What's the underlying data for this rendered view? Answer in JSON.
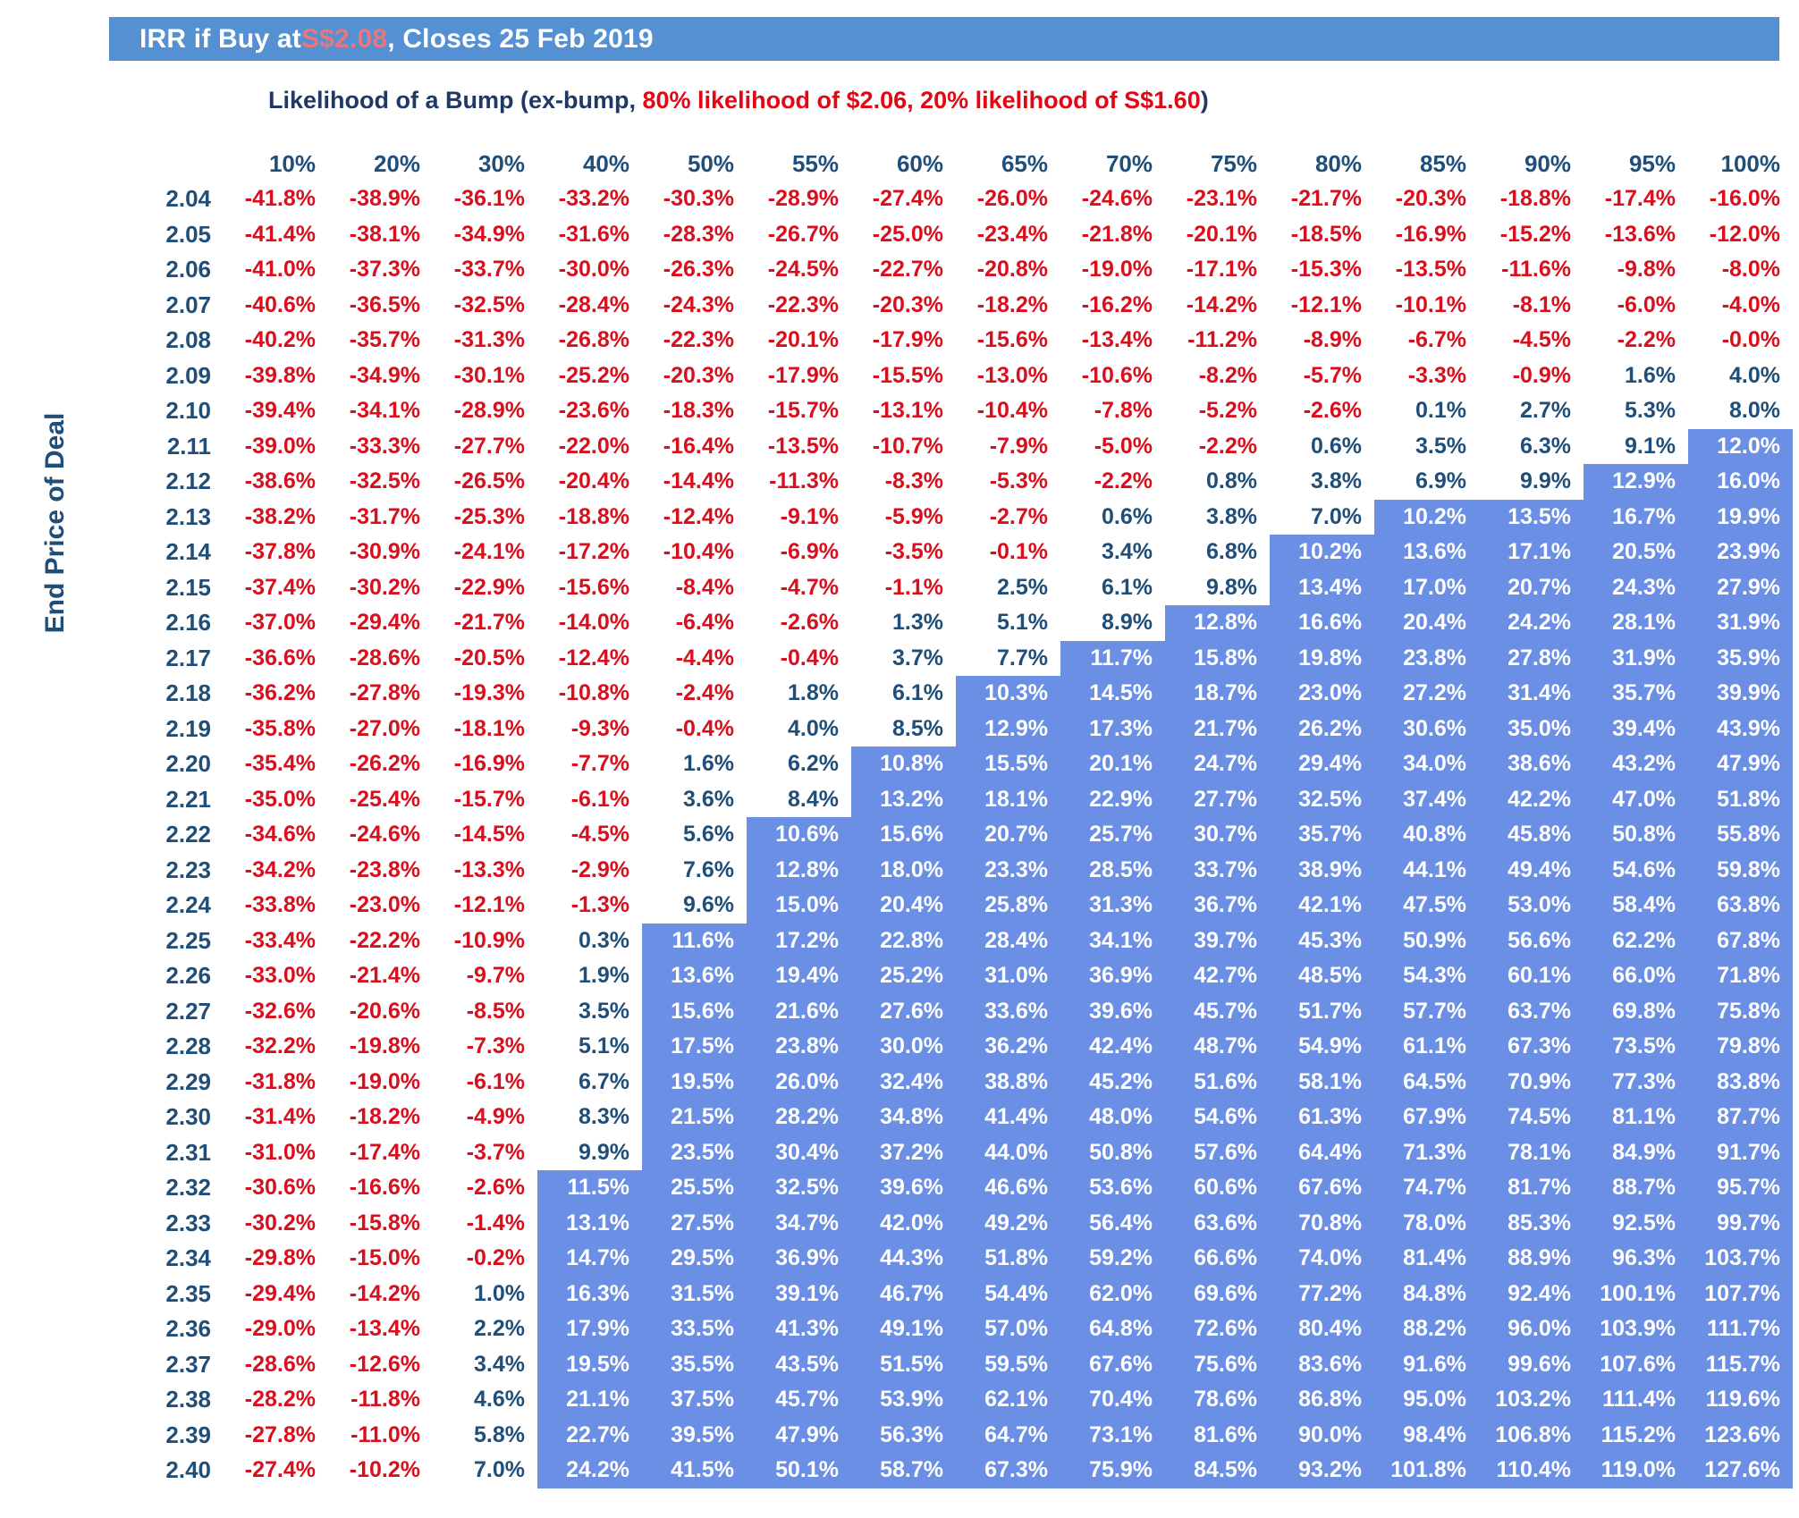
{
  "title": {
    "prefix": "IRR if Buy at ",
    "accent": "S$2.08",
    "suffix": ", Closes 25 Feb 2019"
  },
  "subtitle": {
    "prefix": "Likelihood of a Bump (ex-bump, ",
    "red": "80% likelihood of $2.06, 20% likelihood of S$1.60",
    "suffix": ")"
  },
  "colors": {
    "title_bar_bg": "#5590D2",
    "title_accent_red": "#E8767D",
    "navy_text": "#1F4E79",
    "negative_red": "#D90F1D",
    "subtitle_red": "#E30613",
    "highlight_bg": "#6A8FE5",
    "highlight_text": "#FFFFFF"
  },
  "chart_data": {
    "type": "table",
    "title": "IRR if Buy at S$2.08, Closes 25 Feb 2019",
    "subtitle": "Likelihood of a Bump (ex-bump, 80% likelihood of $2.06, 20% likelihood of S$1.60)",
    "xlabel": "Likelihood of a Bump",
    "ylabel": "End Price of Deal",
    "highlight_threshold_pct": 10,
    "highlight_note": "cells with IRR >= 10% shown white on blue",
    "columns": [
      "10%",
      "20%",
      "30%",
      "40%",
      "50%",
      "55%",
      "60%",
      "65%",
      "70%",
      "75%",
      "80%",
      "85%",
      "90%",
      "95%",
      "100%"
    ],
    "rows": [
      "2.04",
      "2.05",
      "2.06",
      "2.07",
      "2.08",
      "2.09",
      "2.10",
      "2.11",
      "2.12",
      "2.13",
      "2.14",
      "2.15",
      "2.16",
      "2.17",
      "2.18",
      "2.19",
      "2.20",
      "2.21",
      "2.22",
      "2.23",
      "2.24",
      "2.25",
      "2.26",
      "2.27",
      "2.28",
      "2.29",
      "2.30",
      "2.31",
      "2.32",
      "2.33",
      "2.34",
      "2.35",
      "2.36",
      "2.37",
      "2.38",
      "2.39",
      "2.40"
    ],
    "values": [
      [
        "-41.8%",
        "-38.9%",
        "-36.1%",
        "-33.2%",
        "-30.3%",
        "-28.9%",
        "-27.4%",
        "-26.0%",
        "-24.6%",
        "-23.1%",
        "-21.7%",
        "-20.3%",
        "-18.8%",
        "-17.4%",
        "-16.0%"
      ],
      [
        "-41.4%",
        "-38.1%",
        "-34.9%",
        "-31.6%",
        "-28.3%",
        "-26.7%",
        "-25.0%",
        "-23.4%",
        "-21.8%",
        "-20.1%",
        "-18.5%",
        "-16.9%",
        "-15.2%",
        "-13.6%",
        "-12.0%"
      ],
      [
        "-41.0%",
        "-37.3%",
        "-33.7%",
        "-30.0%",
        "-26.3%",
        "-24.5%",
        "-22.7%",
        "-20.8%",
        "-19.0%",
        "-17.1%",
        "-15.3%",
        "-13.5%",
        "-11.6%",
        "-9.8%",
        "-8.0%"
      ],
      [
        "-40.6%",
        "-36.5%",
        "-32.5%",
        "-28.4%",
        "-24.3%",
        "-22.3%",
        "-20.3%",
        "-18.2%",
        "-16.2%",
        "-14.2%",
        "-12.1%",
        "-10.1%",
        "-8.1%",
        "-6.0%",
        "-4.0%"
      ],
      [
        "-40.2%",
        "-35.7%",
        "-31.3%",
        "-26.8%",
        "-22.3%",
        "-20.1%",
        "-17.9%",
        "-15.6%",
        "-13.4%",
        "-11.2%",
        "-8.9%",
        "-6.7%",
        "-4.5%",
        "-2.2%",
        "-0.0%"
      ],
      [
        "-39.8%",
        "-34.9%",
        "-30.1%",
        "-25.2%",
        "-20.3%",
        "-17.9%",
        "-15.5%",
        "-13.0%",
        "-10.6%",
        "-8.2%",
        "-5.7%",
        "-3.3%",
        "-0.9%",
        "1.6%",
        "4.0%"
      ],
      [
        "-39.4%",
        "-34.1%",
        "-28.9%",
        "-23.6%",
        "-18.3%",
        "-15.7%",
        "-13.1%",
        "-10.4%",
        "-7.8%",
        "-5.2%",
        "-2.6%",
        "0.1%",
        "2.7%",
        "5.3%",
        "8.0%"
      ],
      [
        "-39.0%",
        "-33.3%",
        "-27.7%",
        "-22.0%",
        "-16.4%",
        "-13.5%",
        "-10.7%",
        "-7.9%",
        "-5.0%",
        "-2.2%",
        "0.6%",
        "3.5%",
        "6.3%",
        "9.1%",
        "12.0%"
      ],
      [
        "-38.6%",
        "-32.5%",
        "-26.5%",
        "-20.4%",
        "-14.4%",
        "-11.3%",
        "-8.3%",
        "-5.3%",
        "-2.2%",
        "0.8%",
        "3.8%",
        "6.9%",
        "9.9%",
        "12.9%",
        "16.0%"
      ],
      [
        "-38.2%",
        "-31.7%",
        "-25.3%",
        "-18.8%",
        "-12.4%",
        "-9.1%",
        "-5.9%",
        "-2.7%",
        "0.6%",
        "3.8%",
        "7.0%",
        "10.2%",
        "13.5%",
        "16.7%",
        "19.9%"
      ],
      [
        "-37.8%",
        "-30.9%",
        "-24.1%",
        "-17.2%",
        "-10.4%",
        "-6.9%",
        "-3.5%",
        "-0.1%",
        "3.4%",
        "6.8%",
        "10.2%",
        "13.6%",
        "17.1%",
        "20.5%",
        "23.9%"
      ],
      [
        "-37.4%",
        "-30.2%",
        "-22.9%",
        "-15.6%",
        "-8.4%",
        "-4.7%",
        "-1.1%",
        "2.5%",
        "6.1%",
        "9.8%",
        "13.4%",
        "17.0%",
        "20.7%",
        "24.3%",
        "27.9%"
      ],
      [
        "-37.0%",
        "-29.4%",
        "-21.7%",
        "-14.0%",
        "-6.4%",
        "-2.6%",
        "1.3%",
        "5.1%",
        "8.9%",
        "12.8%",
        "16.6%",
        "20.4%",
        "24.2%",
        "28.1%",
        "31.9%"
      ],
      [
        "-36.6%",
        "-28.6%",
        "-20.5%",
        "-12.4%",
        "-4.4%",
        "-0.4%",
        "3.7%",
        "7.7%",
        "11.7%",
        "15.8%",
        "19.8%",
        "23.8%",
        "27.8%",
        "31.9%",
        "35.9%"
      ],
      [
        "-36.2%",
        "-27.8%",
        "-19.3%",
        "-10.8%",
        "-2.4%",
        "1.8%",
        "6.1%",
        "10.3%",
        "14.5%",
        "18.7%",
        "23.0%",
        "27.2%",
        "31.4%",
        "35.7%",
        "39.9%"
      ],
      [
        "-35.8%",
        "-27.0%",
        "-18.1%",
        "-9.3%",
        "-0.4%",
        "4.0%",
        "8.5%",
        "12.9%",
        "17.3%",
        "21.7%",
        "26.2%",
        "30.6%",
        "35.0%",
        "39.4%",
        "43.9%"
      ],
      [
        "-35.4%",
        "-26.2%",
        "-16.9%",
        "-7.7%",
        "1.6%",
        "6.2%",
        "10.8%",
        "15.5%",
        "20.1%",
        "24.7%",
        "29.4%",
        "34.0%",
        "38.6%",
        "43.2%",
        "47.9%"
      ],
      [
        "-35.0%",
        "-25.4%",
        "-15.7%",
        "-6.1%",
        "3.6%",
        "8.4%",
        "13.2%",
        "18.1%",
        "22.9%",
        "27.7%",
        "32.5%",
        "37.4%",
        "42.2%",
        "47.0%",
        "51.8%"
      ],
      [
        "-34.6%",
        "-24.6%",
        "-14.5%",
        "-4.5%",
        "5.6%",
        "10.6%",
        "15.6%",
        "20.7%",
        "25.7%",
        "30.7%",
        "35.7%",
        "40.8%",
        "45.8%",
        "50.8%",
        "55.8%"
      ],
      [
        "-34.2%",
        "-23.8%",
        "-13.3%",
        "-2.9%",
        "7.6%",
        "12.8%",
        "18.0%",
        "23.3%",
        "28.5%",
        "33.7%",
        "38.9%",
        "44.1%",
        "49.4%",
        "54.6%",
        "59.8%"
      ],
      [
        "-33.8%",
        "-23.0%",
        "-12.1%",
        "-1.3%",
        "9.6%",
        "15.0%",
        "20.4%",
        "25.8%",
        "31.3%",
        "36.7%",
        "42.1%",
        "47.5%",
        "53.0%",
        "58.4%",
        "63.8%"
      ],
      [
        "-33.4%",
        "-22.2%",
        "-10.9%",
        "0.3%",
        "11.6%",
        "17.2%",
        "22.8%",
        "28.4%",
        "34.1%",
        "39.7%",
        "45.3%",
        "50.9%",
        "56.6%",
        "62.2%",
        "67.8%"
      ],
      [
        "-33.0%",
        "-21.4%",
        "-9.7%",
        "1.9%",
        "13.6%",
        "19.4%",
        "25.2%",
        "31.0%",
        "36.9%",
        "42.7%",
        "48.5%",
        "54.3%",
        "60.1%",
        "66.0%",
        "71.8%"
      ],
      [
        "-32.6%",
        "-20.6%",
        "-8.5%",
        "3.5%",
        "15.6%",
        "21.6%",
        "27.6%",
        "33.6%",
        "39.6%",
        "45.7%",
        "51.7%",
        "57.7%",
        "63.7%",
        "69.8%",
        "75.8%"
      ],
      [
        "-32.2%",
        "-19.8%",
        "-7.3%",
        "5.1%",
        "17.5%",
        "23.8%",
        "30.0%",
        "36.2%",
        "42.4%",
        "48.7%",
        "54.9%",
        "61.1%",
        "67.3%",
        "73.5%",
        "79.8%"
      ],
      [
        "-31.8%",
        "-19.0%",
        "-6.1%",
        "6.7%",
        "19.5%",
        "26.0%",
        "32.4%",
        "38.8%",
        "45.2%",
        "51.6%",
        "58.1%",
        "64.5%",
        "70.9%",
        "77.3%",
        "83.8%"
      ],
      [
        "-31.4%",
        "-18.2%",
        "-4.9%",
        "8.3%",
        "21.5%",
        "28.2%",
        "34.8%",
        "41.4%",
        "48.0%",
        "54.6%",
        "61.3%",
        "67.9%",
        "74.5%",
        "81.1%",
        "87.7%"
      ],
      [
        "-31.0%",
        "-17.4%",
        "-3.7%",
        "9.9%",
        "23.5%",
        "30.4%",
        "37.2%",
        "44.0%",
        "50.8%",
        "57.6%",
        "64.4%",
        "71.3%",
        "78.1%",
        "84.9%",
        "91.7%"
      ],
      [
        "-30.6%",
        "-16.6%",
        "-2.6%",
        "11.5%",
        "25.5%",
        "32.5%",
        "39.6%",
        "46.6%",
        "53.6%",
        "60.6%",
        "67.6%",
        "74.7%",
        "81.7%",
        "88.7%",
        "95.7%"
      ],
      [
        "-30.2%",
        "-15.8%",
        "-1.4%",
        "13.1%",
        "27.5%",
        "34.7%",
        "42.0%",
        "49.2%",
        "56.4%",
        "63.6%",
        "70.8%",
        "78.0%",
        "85.3%",
        "92.5%",
        "99.7%"
      ],
      [
        "-29.8%",
        "-15.0%",
        "-0.2%",
        "14.7%",
        "29.5%",
        "36.9%",
        "44.3%",
        "51.8%",
        "59.2%",
        "66.6%",
        "74.0%",
        "81.4%",
        "88.9%",
        "96.3%",
        "103.7%"
      ],
      [
        "-29.4%",
        "-14.2%",
        "1.0%",
        "16.3%",
        "31.5%",
        "39.1%",
        "46.7%",
        "54.4%",
        "62.0%",
        "69.6%",
        "77.2%",
        "84.8%",
        "92.4%",
        "100.1%",
        "107.7%"
      ],
      [
        "-29.0%",
        "-13.4%",
        "2.2%",
        "17.9%",
        "33.5%",
        "41.3%",
        "49.1%",
        "57.0%",
        "64.8%",
        "72.6%",
        "80.4%",
        "88.2%",
        "96.0%",
        "103.9%",
        "111.7%"
      ],
      [
        "-28.6%",
        "-12.6%",
        "3.4%",
        "19.5%",
        "35.5%",
        "43.5%",
        "51.5%",
        "59.5%",
        "67.6%",
        "75.6%",
        "83.6%",
        "91.6%",
        "99.6%",
        "107.6%",
        "115.7%"
      ],
      [
        "-28.2%",
        "-11.8%",
        "4.6%",
        "21.1%",
        "37.5%",
        "45.7%",
        "53.9%",
        "62.1%",
        "70.4%",
        "78.6%",
        "86.8%",
        "95.0%",
        "103.2%",
        "111.4%",
        "119.6%"
      ],
      [
        "-27.8%",
        "-11.0%",
        "5.8%",
        "22.7%",
        "39.5%",
        "47.9%",
        "56.3%",
        "64.7%",
        "73.1%",
        "81.6%",
        "90.0%",
        "98.4%",
        "106.8%",
        "115.2%",
        "123.6%"
      ],
      [
        "-27.4%",
        "-10.2%",
        "7.0%",
        "24.2%",
        "41.5%",
        "50.1%",
        "58.7%",
        "67.3%",
        "75.9%",
        "84.5%",
        "93.2%",
        "101.8%",
        "110.4%",
        "119.0%",
        "127.6%"
      ]
    ]
  }
}
